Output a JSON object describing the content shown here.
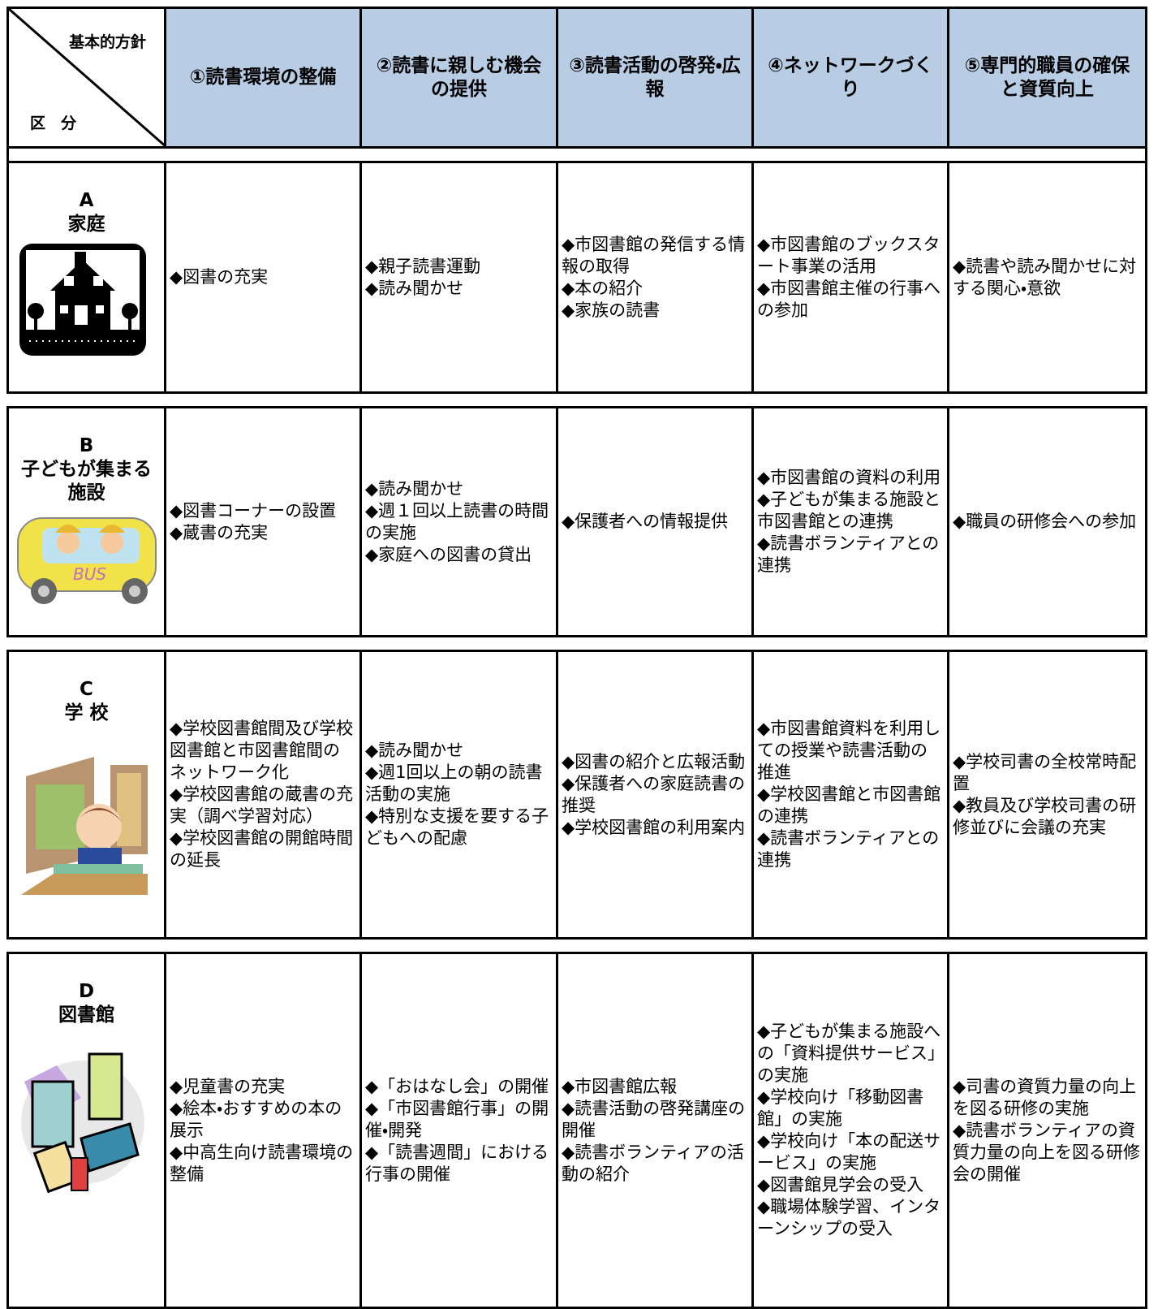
{
  "header": {
    "corner_top": "基本的方針",
    "corner_bottom": "区　分",
    "columns": [
      "①読書環境の整備",
      "②読書に親しむ機会の提供",
      "③読書活動の啓発・広報",
      "④ネットワークづくり",
      "⑤専門的職員の確保と資質向上"
    ]
  },
  "rows": [
    {
      "id": "A",
      "label": "家庭",
      "cells": [
        [
          "◆図書の充実"
        ],
        [
          "◆親子読書運動",
          "◆読み聞かせ"
        ],
        [
          "◆市図書館の発信する情報の取得",
          "◆本の紹介",
          "◆家族の読書"
        ],
        [
          "◆市図書館のブックスタート事業の活用",
          "◆市図書館主催の行事への参加"
        ],
        [
          "◆読書や読み聞かせに対する関心・意欲"
        ]
      ]
    },
    {
      "id": "B",
      "label": "子どもが集まる施設",
      "cells": [
        [
          "◆図書コーナーの設置",
          "◆蔵書の充実"
        ],
        [
          "◆読み聞かせ",
          "◆週１回以上読書の時間の実施",
          "◆家庭への図書の貸出"
        ],
        [
          "◆保護者への情報提供"
        ],
        [
          "◆市図書館の資料の利用",
          "◆子どもが集まる施設と市図書館との連携",
          "◆読書ボランティアとの連携"
        ],
        [
          "◆職員の研修会への参加"
        ]
      ]
    },
    {
      "id": "C",
      "label": "学 校",
      "cells": [
        [
          "◆学校図書館間及び学校図書館と市図書館間のネットワーク化",
          "◆学校図書館の蔵書の充実（調べ学習対応）",
          "◆学校図書館の開館時間の延長"
        ],
        [
          "◆読み聞かせ",
          "◆週1回以上の朝の読書活動の実施",
          "◆特別な支援を要する子どもへの配慮"
        ],
        [
          "◆図書の紹介と広報活動",
          "◆保護者への家庭読書の推奨",
          "◆学校図書館の利用案内"
        ],
        [
          "◆市図書館資料を利用しての授業や読書活動の推進",
          "◆学校図書館と市図書館の連携",
          "◆読書ボランティアとの連携"
        ],
        [
          "◆学校司書の全校常時配置",
          "◆教員及び学校司書の研修並びに会議の充実"
        ]
      ]
    },
    {
      "id": "D",
      "label": "図書館",
      "cells": [
        [
          "◆児童書の充実",
          "◆絵本・おすすめの本の展示",
          "◆中高生向け読書環境の整備"
        ],
        [
          "◆「おはなし会」の開催",
          "◆「市図書館行事」の開催・開発",
          "◆「読書週間」における行事の開催"
        ],
        [
          "◆市図書館広報",
          "◆読書活動の啓発講座の開催",
          "◆読書ボランティアの活動の紹介"
        ],
        [
          "◆子どもが集まる施設への「資料提供サービス」の実施",
          "◆学校向け「移動図書館」の実施",
          "◆学校向け「本の配送サービス」の実施",
          "◆図書館見学会の受入",
          "◆職場体験学習、インターンシップの受入"
        ],
        [
          "◆司書の資質力量の向上を図る研修の実施",
          "◆読書ボランティアの資質力量の向上を図る研修会の開催"
        ]
      ]
    }
  ]
}
